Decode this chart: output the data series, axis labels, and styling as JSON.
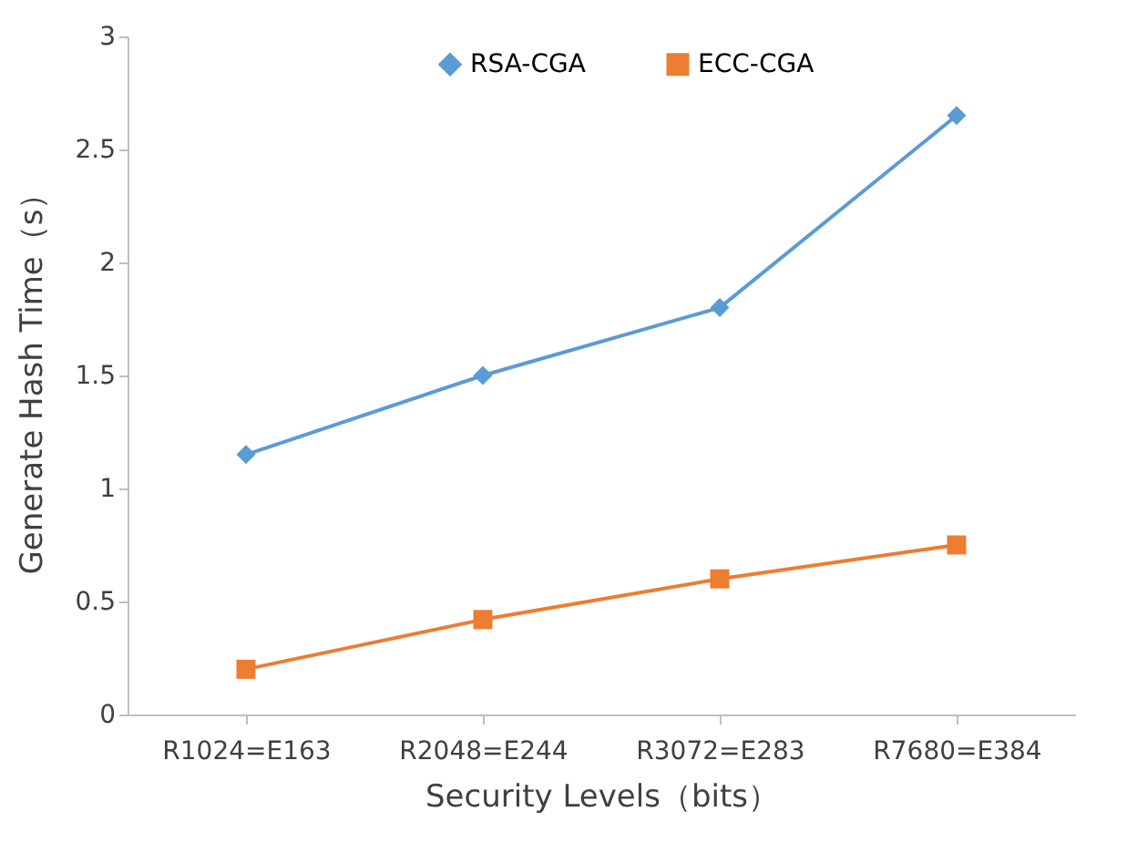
{
  "chart_data": {
    "type": "line",
    "xlabel": "Security Levels（bits）",
    "ylabel": "Generate Hash Time（s）",
    "categories": [
      "R1024=E163",
      "R2048=E244",
      "R3072=E283",
      "R7680=E384"
    ],
    "series": [
      {
        "name": "RSA-CGA",
        "color": "#5b9bd5",
        "marker": "diamond",
        "values": [
          1.15,
          1.5,
          1.8,
          2.65
        ]
      },
      {
        "name": "ECC-CGA",
        "color": "#ed7d31",
        "marker": "square",
        "values": [
          0.2,
          0.42,
          0.6,
          0.75
        ]
      }
    ],
    "ylim": [
      0,
      3
    ],
    "yticks": [
      0,
      0.5,
      1,
      1.5,
      2,
      2.5,
      3
    ],
    "grid": false,
    "legend": "top",
    "line_style": "solid"
  }
}
